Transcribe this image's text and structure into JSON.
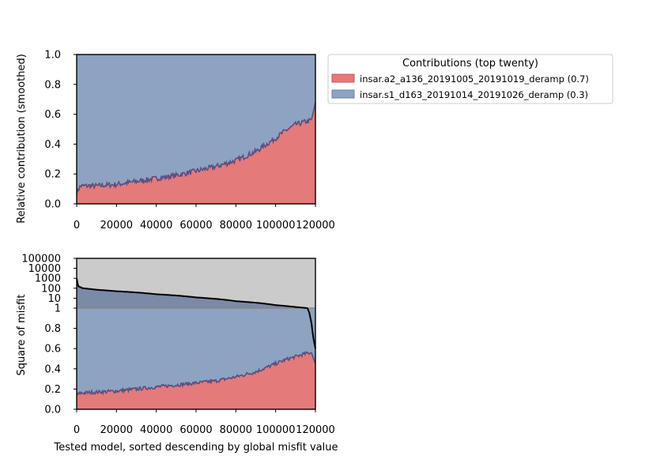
{
  "chart_data": [
    {
      "type": "area",
      "stacked": true,
      "x_range": [
        0,
        120000
      ],
      "ylim": [
        0,
        1.0
      ],
      "ylabel": "Relative contribution (smoothed)",
      "xlabel": "",
      "x_ticks": [
        "0",
        "20000",
        "40000",
        "60000",
        "80000",
        "100000",
        "120000"
      ],
      "y_ticks": [
        "0.0",
        "0.2",
        "0.4",
        "0.6",
        "0.8",
        "1.0"
      ],
      "grid": false,
      "series": [
        {
          "name": "insar.a2_a136_20191005_20191019_deramp (0.7)",
          "color": "#e57a7b",
          "x": [
            0,
            2000,
            10000,
            20000,
            30000,
            40000,
            50000,
            60000,
            70000,
            80000,
            90000,
            100000,
            105000,
            110000,
            115000,
            118000,
            120000
          ],
          "values": [
            0.08,
            0.12,
            0.12,
            0.13,
            0.15,
            0.17,
            0.19,
            0.22,
            0.25,
            0.29,
            0.35,
            0.44,
            0.49,
            0.53,
            0.55,
            0.56,
            0.68
          ]
        },
        {
          "name": "insar.s1_d163_20191014_20191026_deramp (0.3)",
          "color": "#8ea3c1",
          "x": [
            0,
            2000,
            10000,
            20000,
            30000,
            40000,
            50000,
            60000,
            70000,
            80000,
            90000,
            100000,
            105000,
            110000,
            115000,
            118000,
            120000
          ],
          "values": [
            0.92,
            0.88,
            0.88,
            0.87,
            0.85,
            0.83,
            0.81,
            0.78,
            0.75,
            0.71,
            0.65,
            0.56,
            0.51,
            0.47,
            0.45,
            0.44,
            0.32
          ]
        }
      ],
      "legend": {
        "title": "Contributions (top twenty)",
        "placement": "outside-right"
      }
    },
    {
      "type": "area",
      "stacked": true,
      "x_range": [
        0,
        120000
      ],
      "xlabel": "Tested model, sorted descending by global misfit value",
      "ylabel": "Square of misfit",
      "x_ticks": [
        "0",
        "20000",
        "40000",
        "60000",
        "80000",
        "100000",
        "120000"
      ],
      "y_ticks_linear": [
        "0.0",
        "0.2",
        "0.4",
        "0.6",
        "0.8",
        "1"
      ],
      "y_ticks_log": [
        "10",
        "100",
        "1000",
        "10000",
        "100000"
      ],
      "yscale": "linear 0–1 below, log 1–100000 above",
      "grid": false,
      "misfit_line": {
        "color": "#000000",
        "x": [
          0,
          300,
          1000,
          3000,
          10000,
          20000,
          40000,
          60000,
          80000,
          100000,
          110000,
          115000,
          117000,
          118000,
          119000,
          120000
        ],
        "values": [
          1000,
          300,
          150,
          100,
          70,
          50,
          25,
          12,
          5,
          2,
          1.3,
          1.05,
          0.95,
          0.85,
          0.7,
          0.6
        ]
      },
      "series": [
        {
          "name": "insar.a2_a136_20191005_20191019_deramp (0.7)",
          "color": "#e57a7b",
          "x": [
            0,
            2000,
            10000,
            20000,
            30000,
            40000,
            50000,
            60000,
            70000,
            80000,
            90000,
            100000,
            105000,
            110000,
            115000,
            118000,
            120000
          ],
          "values": [
            0.14,
            0.16,
            0.17,
            0.18,
            0.2,
            0.22,
            0.24,
            0.26,
            0.28,
            0.32,
            0.37,
            0.45,
            0.49,
            0.52,
            0.55,
            0.56,
            0.45
          ]
        },
        {
          "name": "insar.s1_d163_20191014_20191026_deramp (0.3)",
          "color": "#8ea3c1",
          "x": [
            0,
            2000,
            10000,
            20000,
            30000,
            40000,
            50000,
            60000,
            70000,
            80000,
            90000,
            100000,
            105000,
            110000,
            115000,
            118000,
            120000
          ],
          "values": [
            0.86,
            0.84,
            0.83,
            0.82,
            0.8,
            0.78,
            0.76,
            0.74,
            0.72,
            0.68,
            0.63,
            0.55,
            0.51,
            0.48,
            0.45,
            0.44,
            0.55
          ]
        }
      ]
    }
  ]
}
